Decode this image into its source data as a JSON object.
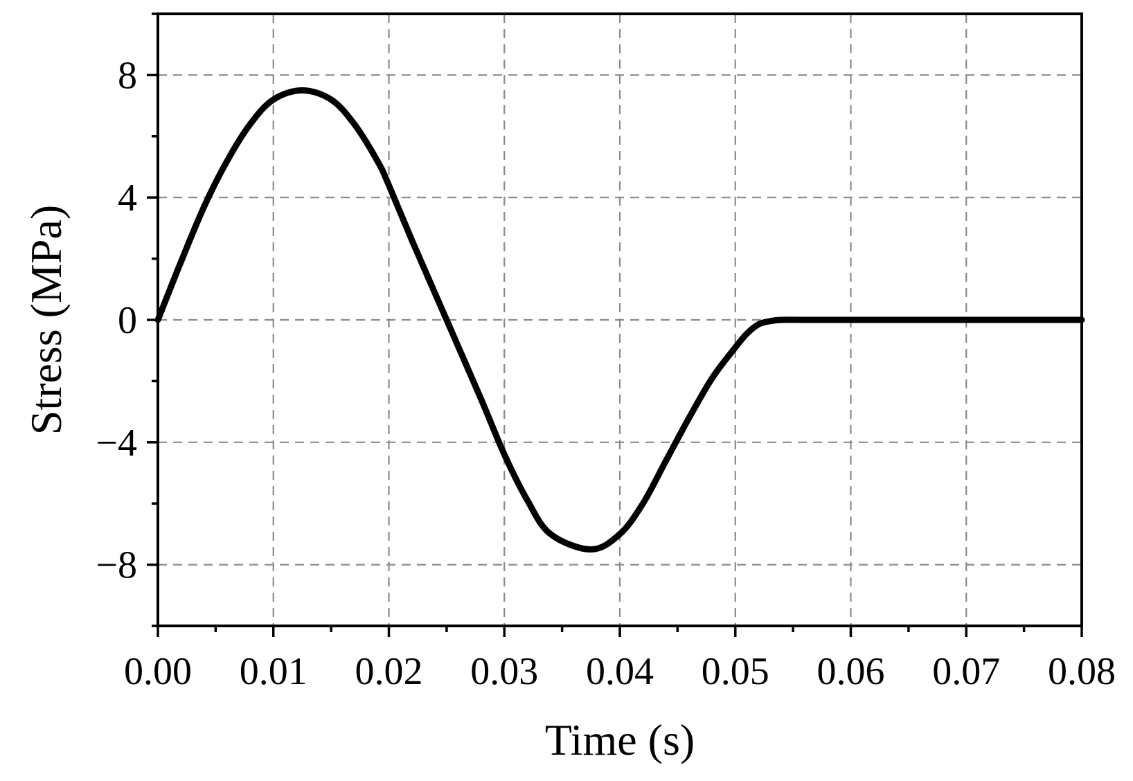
{
  "chart_data": {
    "type": "line",
    "title": "",
    "xlabel": "Time (s)",
    "ylabel": "Stress (MPa)",
    "xlim": [
      0,
      0.08
    ],
    "ylim": [
      -10,
      10
    ],
    "x_ticks": [
      0.0,
      0.01,
      0.02,
      0.03,
      0.04,
      0.05,
      0.06,
      0.07,
      0.08
    ],
    "x_tick_labels": [
      "0.00",
      "0.01",
      "0.02",
      "0.03",
      "0.04",
      "0.05",
      "0.06",
      "0.07",
      "0.08"
    ],
    "y_ticks": [
      8,
      4,
      0,
      -4,
      -8
    ],
    "y_tick_labels": [
      "8",
      "4",
      "0",
      "−4",
      "−8"
    ],
    "grid": true,
    "legend": "none",
    "series": [
      {
        "color": "#000000",
        "x": [
          0.0,
          0.002,
          0.004,
          0.006,
          0.008,
          0.01,
          0.0125,
          0.015,
          0.017,
          0.019,
          0.02,
          0.022,
          0.025,
          0.028,
          0.03,
          0.032,
          0.034,
          0.0375,
          0.04,
          0.042,
          0.044,
          0.046,
          0.048,
          0.05,
          0.051,
          0.052,
          0.053,
          0.054,
          0.056,
          0.06,
          0.065,
          0.07,
          0.075,
          0.08
        ],
        "y": [
          0.0,
          1.9,
          3.7,
          5.2,
          6.4,
          7.2,
          7.5,
          7.2,
          6.4,
          5.2,
          4.4,
          2.6,
          0.0,
          -2.6,
          -4.4,
          -5.9,
          -7.0,
          -7.5,
          -7.0,
          -6.0,
          -4.6,
          -3.2,
          -1.9,
          -0.9,
          -0.45,
          -0.15,
          -0.04,
          0.0,
          0.0,
          0.0,
          0.0,
          0.0,
          0.0,
          0.0
        ]
      }
    ]
  }
}
